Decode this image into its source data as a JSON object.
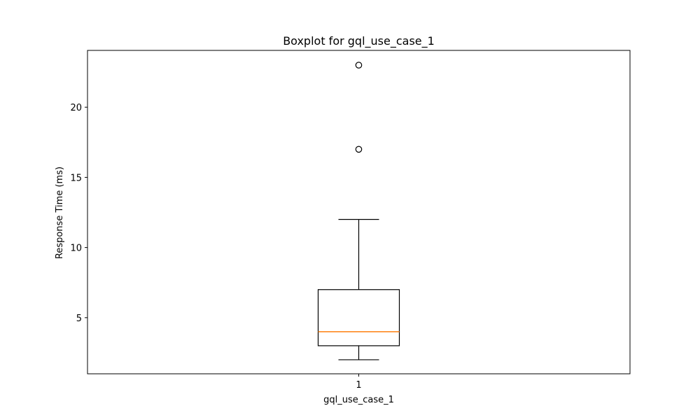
{
  "chart_data": {
    "type": "boxplot",
    "title": "Boxplot for gql_use_case_1",
    "xlabel": "gql_use_case_1",
    "ylabel": "Response Time (ms)",
    "categories": [
      "1"
    ],
    "boxes": [
      {
        "category": "1",
        "whisker_low": 2,
        "q1": 3,
        "median": 4,
        "q3": 7,
        "whisker_high": 12,
        "outliers": [
          17,
          23
        ]
      }
    ],
    "ylim": [
      1,
      24.05
    ],
    "yticks": [
      5,
      10,
      15,
      20
    ],
    "grid": false,
    "colors": {
      "box": "#000000",
      "median": "#ff7f0e",
      "outlier": "#000000"
    }
  }
}
